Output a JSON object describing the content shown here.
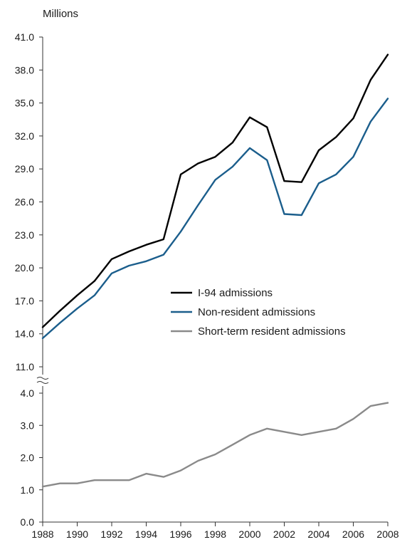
{
  "chart_data": {
    "type": "line",
    "unit_label": "Millions",
    "x": [
      1988,
      1989,
      1990,
      1991,
      1992,
      1993,
      1994,
      1995,
      1996,
      1997,
      1998,
      1999,
      2000,
      2001,
      2002,
      2003,
      2004,
      2005,
      2006,
      2007,
      2008
    ],
    "x_tick_labels": [
      "1988",
      "1990",
      "1992",
      "1994",
      "1996",
      "1998",
      "2000",
      "2002",
      "2004",
      "2006",
      "2008"
    ],
    "upper_y_tick_labels": [
      "11.0",
      "14.0",
      "17.0",
      "20.0",
      "23.0",
      "26.0",
      "29.0",
      "32.0",
      "35.0",
      "38.0",
      "41.0"
    ],
    "lower_y_tick_labels": [
      "0.0",
      "1.0",
      "2.0",
      "3.0",
      "4.0"
    ],
    "axis_break": true,
    "upper_ylim": [
      11,
      41
    ],
    "lower_ylim": [
      0,
      4
    ],
    "xlim": [
      1988,
      2008
    ],
    "legend_position": "center-right",
    "series": [
      {
        "name": "I-94 admissions",
        "color": "#000000",
        "panel": "upper",
        "values": [
          14.6,
          16.1,
          17.5,
          18.8,
          20.8,
          21.5,
          22.1,
          22.6,
          28.5,
          29.5,
          30.1,
          31.4,
          33.7,
          32.8,
          27.9,
          27.8,
          30.7,
          31.9,
          33.6,
          37.1,
          39.4
        ]
      },
      {
        "name": "Non-resident admissions",
        "color": "#1b5e8c",
        "panel": "upper",
        "values": [
          13.6,
          15.0,
          16.3,
          17.5,
          19.5,
          20.2,
          20.6,
          21.2,
          23.3,
          25.7,
          28.0,
          29.2,
          30.9,
          29.8,
          24.9,
          24.8,
          27.7,
          28.5,
          30.1,
          33.3,
          35.4
        ]
      },
      {
        "name": "Short-term resident admissions",
        "color": "#8a8a8a",
        "panel": "lower",
        "values": [
          1.1,
          1.2,
          1.2,
          1.3,
          1.3,
          1.3,
          1.5,
          1.4,
          1.6,
          1.9,
          2.1,
          2.4,
          2.7,
          2.9,
          2.8,
          2.7,
          2.8,
          2.9,
          3.2,
          3.6,
          3.7
        ]
      }
    ]
  }
}
